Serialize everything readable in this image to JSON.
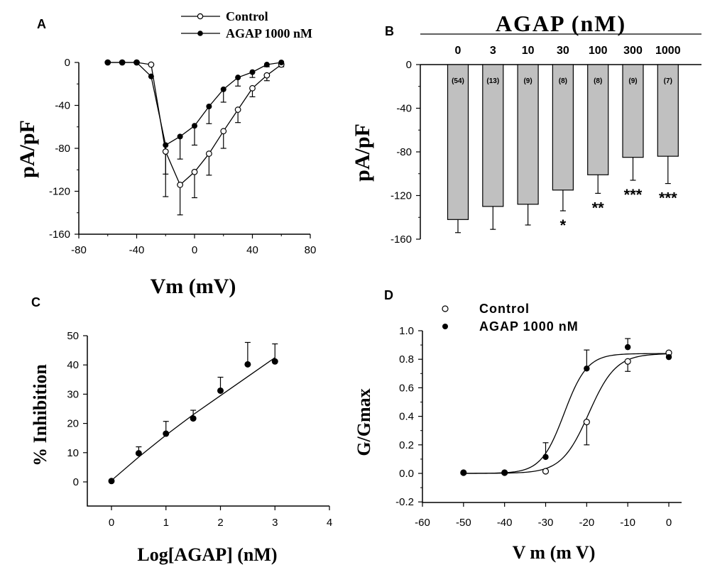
{
  "chart_data": [
    {
      "panel": "A",
      "type": "line",
      "ylabel": "pA/pF",
      "xlabel": "Vm (mV)",
      "xlim": [
        -80,
        80
      ],
      "ylim": [
        -160,
        0
      ],
      "xticks": [
        "-80",
        "-40",
        "0",
        "40",
        "80"
      ],
      "yticks": [
        "0",
        "-40",
        "-80",
        "-120",
        "-160"
      ],
      "legend": [
        "Control",
        "AGAP 1000 nM"
      ],
      "x": [
        -60,
        -50,
        -40,
        -30,
        -20,
        -10,
        0,
        10,
        20,
        30,
        40,
        50,
        60
      ],
      "series": [
        {
          "name": "Control",
          "marker": "open",
          "values": [
            0,
            0,
            0,
            -2,
            -83,
            -114,
            -102,
            -85,
            -64,
            -44,
            -24,
            -12,
            -2
          ],
          "err": [
            0,
            0,
            0,
            0,
            42,
            28,
            24,
            20,
            16,
            12,
            8,
            5,
            2
          ]
        },
        {
          "name": "AGAP 1000 nM",
          "marker": "filled",
          "values": [
            0,
            0,
            0,
            -13,
            -77,
            -69,
            -59,
            -41,
            -25,
            -14,
            -9,
            -2,
            0
          ],
          "err": [
            0,
            0,
            0,
            0,
            27,
            21,
            18,
            16,
            12,
            8,
            5,
            2,
            1
          ]
        }
      ]
    },
    {
      "panel": "B",
      "type": "bar",
      "header": "AGAP (nM)",
      "ylabel": "pA/pF",
      "ylim": [
        -160,
        0
      ],
      "yticks": [
        "0",
        "-40",
        "-80",
        "-120",
        "-160"
      ],
      "categories": [
        "0",
        "3",
        "10",
        "30",
        "100",
        "300",
        "1000"
      ],
      "values": [
        -142,
        -130,
        -128,
        -115,
        -101,
        -85,
        -84
      ],
      "err": [
        12,
        21,
        19,
        19,
        17,
        21,
        25
      ],
      "n_labels": [
        "(54)",
        "(13)",
        "(9)",
        "(8)",
        "(8)",
        "(9)",
        "(7)"
      ],
      "significance": [
        "",
        "",
        "",
        "*",
        "**",
        "***",
        "***"
      ]
    },
    {
      "panel": "C",
      "type": "scatter",
      "ylabel": "% Inhibition",
      "xlabel": "Log[AGAP] (nM)",
      "xlim": [
        -0.5,
        4
      ],
      "ylim": [
        -5,
        50
      ],
      "xticks": [
        "0",
        "1",
        "2",
        "3",
        "4"
      ],
      "yticks": [
        "0",
        "10",
        "20",
        "30",
        "40",
        "50"
      ],
      "x": [
        0,
        0.5,
        1,
        1.5,
        2,
        2.5,
        3
      ],
      "values": [
        0.3,
        9.8,
        16.5,
        21.7,
        31.2,
        40.2,
        41.2
      ],
      "err": [
        0,
        2.2,
        4.2,
        2.8,
        4.6,
        7.5,
        6
      ],
      "fit": [
        [
          0,
          0.5
        ],
        [
          0.5,
          8.5
        ],
        [
          1,
          16
        ],
        [
          1.5,
          23
        ],
        [
          2,
          29.5
        ],
        [
          2.5,
          36
        ],
        [
          3,
          42.5
        ]
      ]
    },
    {
      "panel": "D",
      "type": "scatter",
      "ylabel": "G/Gmax",
      "xlabel": "V m  (m V)",
      "xlim": [
        -60,
        3
      ],
      "ylim": [
        -0.2,
        1.0
      ],
      "xticks": [
        "-60",
        "-50",
        "-40",
        "-30",
        "-20",
        "-10",
        "0"
      ],
      "yticks": [
        "-0.2",
        "0.0",
        "0.2",
        "0.4",
        "0.6",
        "0.8",
        "1.0"
      ],
      "legend": [
        "Control",
        "AGAP 1000 nM"
      ],
      "x": [
        -50,
        -40,
        -30,
        -20,
        -10,
        0
      ],
      "series": [
        {
          "name": "Control",
          "marker": "open",
          "values": [
            0.005,
            0.005,
            0.015,
            0.36,
            0.785,
            0.845
          ],
          "err": [
            0,
            0,
            0,
            0.16,
            0.07,
            0.02
          ],
          "v_half": -19.5,
          "slope": 3.3,
          "gmax": 0.84
        },
        {
          "name": "AGAP 1000 nM",
          "marker": "filled",
          "values": [
            0.005,
            0.005,
            0.115,
            0.735,
            0.885,
            0.815
          ],
          "err": [
            0,
            0,
            0.1,
            0.13,
            0.06,
            0.03
          ],
          "v_half": -25.5,
          "slope": 2.8,
          "gmax": 0.84
        }
      ]
    }
  ],
  "panel_letters": [
    "A",
    "B",
    "C",
    "D"
  ]
}
